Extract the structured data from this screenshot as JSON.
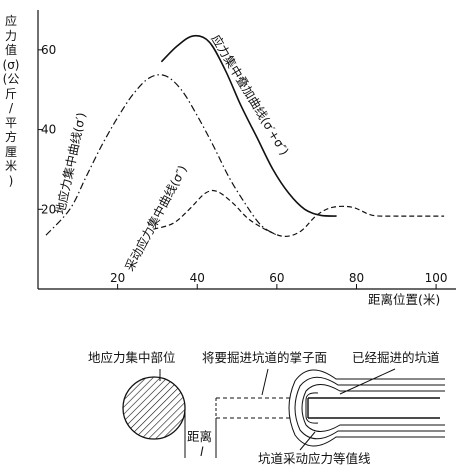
{
  "chart_data": {
    "type": "line",
    "ylabel": "应力值(σ)(公斤/平方厘米)",
    "xlabel": "距离位置(米)",
    "xlim": [
      0,
      105
    ],
    "ylim": [
      0,
      70
    ],
    "x_ticks": [
      "20",
      "40",
      "60",
      "80",
      "100"
    ],
    "y_ticks": [
      "20",
      "40",
      "60"
    ],
    "grid": false,
    "series": [
      {
        "name": "地应力集中曲线(σ′)",
        "style": "dash-dot",
        "points": [
          [
            2,
            13.5
          ],
          [
            8,
            20
          ],
          [
            12,
            28
          ],
          [
            16,
            36
          ],
          [
            20,
            43
          ],
          [
            24,
            49
          ],
          [
            28,
            53
          ],
          [
            32,
            53.5
          ],
          [
            36,
            50
          ],
          [
            40,
            43.5
          ],
          [
            44,
            36
          ],
          [
            48,
            28
          ],
          [
            52,
            21.5
          ],
          [
            56,
            16
          ],
          [
            60,
            13.5
          ]
        ]
      },
      {
        "name": "采动应力集中曲线(σ″)",
        "style": "dashed",
        "points": [
          [
            29,
            15
          ],
          [
            34,
            16.5
          ],
          [
            38,
            20
          ],
          [
            42,
            24
          ],
          [
            45,
            24.5
          ],
          [
            49,
            21.5
          ],
          [
            53,
            17.5
          ],
          [
            58,
            14.5
          ],
          [
            62,
            13.2
          ],
          [
            66,
            14.5
          ],
          [
            70,
            18.5
          ],
          [
            74,
            20.5
          ],
          [
            79,
            20.5
          ],
          [
            84,
            18.5
          ],
          [
            90,
            18.3
          ],
          [
            95,
            18.3
          ],
          [
            102,
            18.3
          ]
        ]
      },
      {
        "name": "应力集中叠加曲线(σ′+σ″)",
        "style": "solid",
        "points": [
          [
            31,
            57
          ],
          [
            35,
            61
          ],
          [
            39,
            63.5
          ],
          [
            43,
            62
          ],
          [
            47,
            55
          ],
          [
            51,
            46
          ],
          [
            55,
            38
          ],
          [
            59,
            30
          ],
          [
            63,
            24
          ],
          [
            67,
            20
          ],
          [
            71,
            18.5
          ],
          [
            75,
            18.3
          ]
        ]
      }
    ],
    "annotations": [
      "地应力集中部位",
      "将要掘进坑道的掌子面",
      "已经掘进的坑道",
      "距离",
      "l",
      "坑道采动应力等值线"
    ]
  }
}
